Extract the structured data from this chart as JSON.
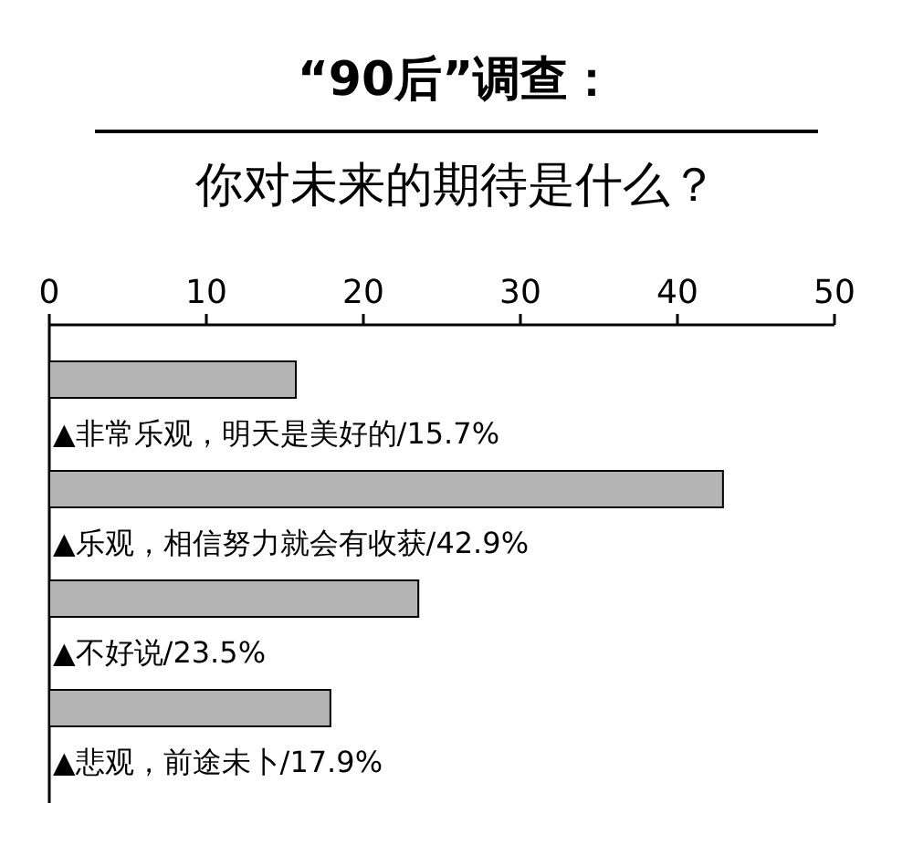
{
  "chart_data": {
    "type": "bar",
    "orientation": "horizontal",
    "title": "“90后”调查：",
    "subtitle": "你对未来的期待是什么？",
    "categories": [
      "▲非常乐观，明天是美好的/15.7%",
      "▲乐观，相信努力就会有收获/42.9%",
      "▲不好说/23.5%",
      "▲悲观，前途未卜/17.9%"
    ],
    "values": [
      15.7,
      42.9,
      23.5,
      17.9
    ],
    "color": "#b4b4b4",
    "xlim": [
      0,
      50
    ],
    "xticks": [
      0,
      10,
      20,
      30,
      40,
      50
    ],
    "grid": false
  }
}
